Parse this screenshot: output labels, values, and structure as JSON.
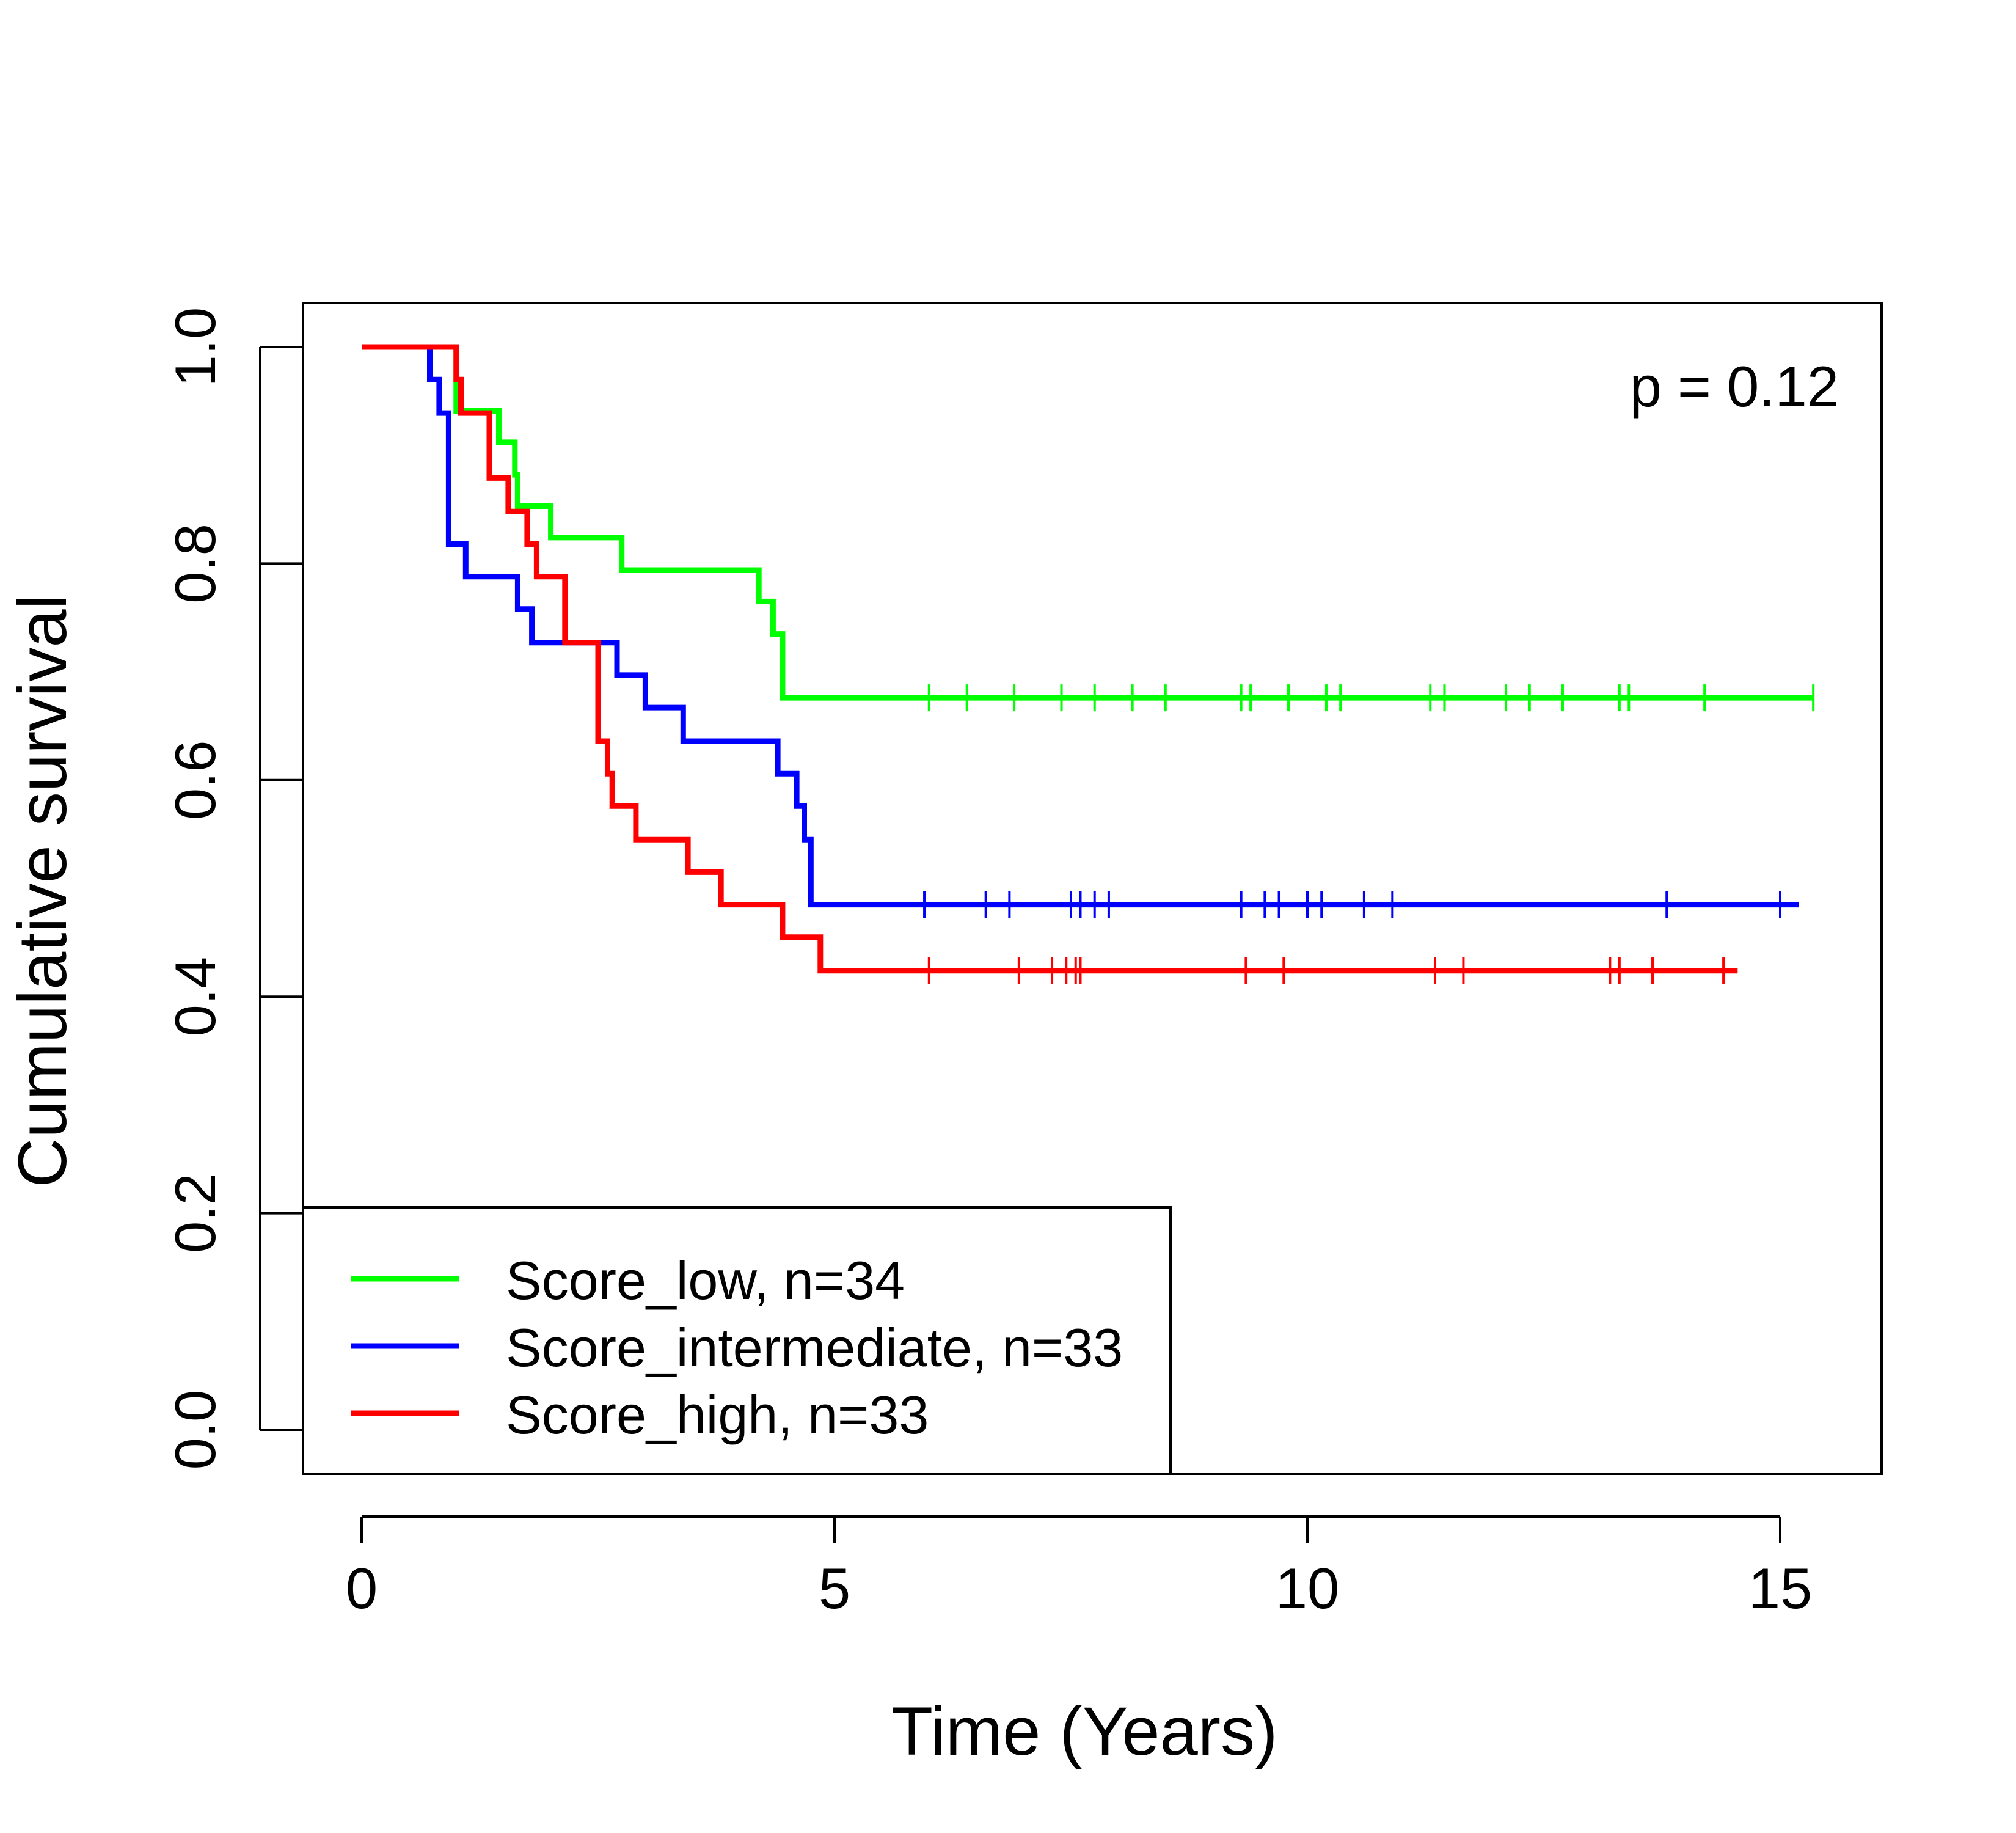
{
  "chart_data": {
    "type": "line",
    "subtype": "kaplan-meier",
    "title": "",
    "xlabel": "Time (Years)",
    "ylabel": "Cumulative survival",
    "xlim": [
      0,
      15.5
    ],
    "ylim": [
      0,
      1.0
    ],
    "x_ticks": [
      0,
      5,
      10,
      15
    ],
    "x_tick_labels": [
      "0",
      "5",
      "10",
      "15"
    ],
    "y_ticks": [
      0.0,
      0.2,
      0.4,
      0.6,
      0.8,
      1.0
    ],
    "y_tick_labels": [
      "0.0",
      "0.2",
      "0.4",
      "0.6",
      "0.8",
      "1.0"
    ],
    "grid": false,
    "legend_position": "bottom-left",
    "annotation": "p = 0.12",
    "series": [
      {
        "name": "Score_low, n=34",
        "color": "#00ff00",
        "steps": [
          [
            0,
            1.0
          ],
          [
            1.0,
            0.941
          ],
          [
            1.45,
            0.912
          ],
          [
            1.62,
            0.882
          ],
          [
            1.65,
            0.853
          ],
          [
            2.0,
            0.824
          ],
          [
            2.75,
            0.794
          ],
          [
            4.2,
            0.765
          ],
          [
            4.35,
            0.735
          ],
          [
            4.45,
            0.676
          ]
        ],
        "end_x": 15.35,
        "censored": [
          6.0,
          6.4,
          6.9,
          7.4,
          7.75,
          8.15,
          8.5,
          9.3,
          9.4,
          9.8,
          10.2,
          10.35,
          11.3,
          11.45,
          12.1,
          12.35,
          12.7,
          13.3,
          13.4,
          14.2,
          15.35
        ]
      },
      {
        "name": "Score_intermediate, n=33",
        "color": "#0000ff",
        "steps": [
          [
            0,
            1.0
          ],
          [
            0.72,
            0.97
          ],
          [
            0.82,
            0.939
          ],
          [
            0.92,
            0.818
          ],
          [
            1.1,
            0.788
          ],
          [
            1.65,
            0.758
          ],
          [
            1.8,
            0.727
          ],
          [
            2.7,
            0.697
          ],
          [
            3.0,
            0.667
          ],
          [
            3.4,
            0.636
          ],
          [
            4.4,
            0.606
          ],
          [
            4.6,
            0.576
          ],
          [
            4.68,
            0.545
          ],
          [
            4.75,
            0.485
          ]
        ],
        "end_x": 15.2,
        "censored": [
          5.95,
          6.6,
          6.85,
          7.5,
          7.6,
          7.75,
          7.9,
          9.3,
          9.55,
          9.7,
          10.0,
          10.15,
          10.6,
          10.9,
          13.8,
          15.0
        ]
      },
      {
        "name": "Score_high, n=33",
        "color": "#ff0000",
        "steps": [
          [
            0,
            1.0
          ],
          [
            1.0,
            0.97
          ],
          [
            1.05,
            0.939
          ],
          [
            1.35,
            0.879
          ],
          [
            1.55,
            0.848
          ],
          [
            1.75,
            0.818
          ],
          [
            1.85,
            0.788
          ],
          [
            2.15,
            0.727
          ],
          [
            2.5,
            0.636
          ],
          [
            2.6,
            0.606
          ],
          [
            2.65,
            0.576
          ],
          [
            2.9,
            0.545
          ],
          [
            3.45,
            0.515
          ],
          [
            3.8,
            0.485
          ],
          [
            4.45,
            0.455
          ],
          [
            4.85,
            0.424
          ]
        ],
        "end_x": 14.55,
        "censored": [
          6.0,
          6.95,
          7.3,
          7.45,
          7.55,
          7.6,
          9.35,
          9.75,
          11.35,
          11.65,
          13.2,
          13.3,
          13.65,
          14.4
        ]
      }
    ]
  }
}
